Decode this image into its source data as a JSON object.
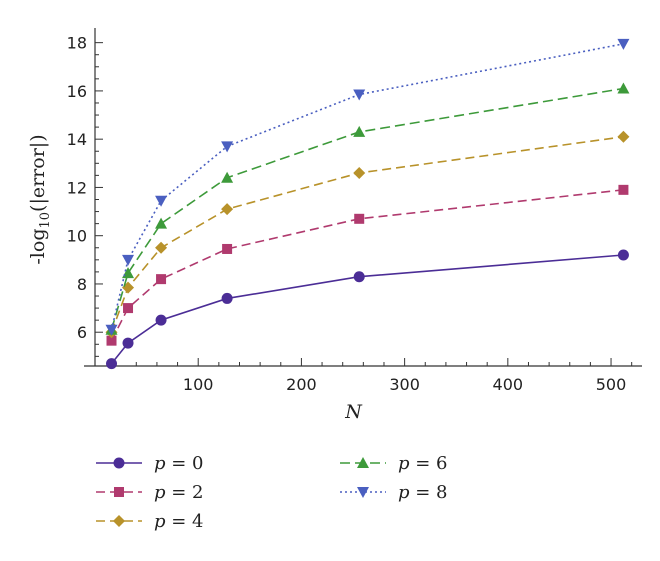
{
  "chart_data": {
    "type": "line",
    "xlabel": "N",
    "ylabel_main": "-log",
    "ylabel_sub": "10",
    "ylabel_rest": "(|error|)",
    "xlim": [
      0,
      530
    ],
    "ylim": [
      4.6,
      18.4
    ],
    "x_ticks": [
      100,
      200,
      300,
      400,
      500
    ],
    "y_ticks": [
      6,
      8,
      10,
      12,
      14,
      16,
      18
    ],
    "x": [
      16,
      32,
      64,
      128,
      256,
      512
    ],
    "series": [
      {
        "name": "p = 0",
        "p": "p",
        "eq": " = 0",
        "color": "#4b2d96",
        "marker": "circle",
        "dash": "",
        "values": [
          4.7,
          5.55,
          6.5,
          7.4,
          8.3,
          9.2
        ]
      },
      {
        "name": "p = 2",
        "p": "p",
        "eq": " = 2",
        "color": "#b03a6e",
        "marker": "square",
        "dash": "9,5",
        "values": [
          5.65,
          7.0,
          8.2,
          9.45,
          10.7,
          11.9
        ]
      },
      {
        "name": "p = 4",
        "p": "p",
        "eq": " = 4",
        "color": "#b8922a",
        "marker": "diamond",
        "dash": "9,5",
        "values": [
          6.0,
          7.85,
          9.5,
          11.1,
          12.6,
          14.1
        ]
      },
      {
        "name": "p = 6",
        "p": "p",
        "eq": " = 6",
        "color": "#3d9a3a",
        "marker": "triangle-up",
        "dash": "10,5",
        "values": [
          6.1,
          8.45,
          10.5,
          12.4,
          14.3,
          16.1
        ]
      },
      {
        "name": "p = 8",
        "p": "p",
        "eq": " = 8",
        "color": "#4a5fc0",
        "marker": "triangle-down",
        "dash": "2,3",
        "values": [
          6.1,
          9.0,
          11.45,
          13.7,
          15.85,
          17.95
        ]
      }
    ],
    "grid": false,
    "legend": "bottom-left"
  }
}
